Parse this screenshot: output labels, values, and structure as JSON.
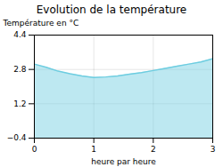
{
  "chart_data": {
    "type": "area",
    "title": "Evolution de la température",
    "xlabel": "heure par heure",
    "ylabel": "Température en °C",
    "x": [
      0,
      0.2,
      0.4,
      0.6,
      0.8,
      1.0,
      1.2,
      1.4,
      1.6,
      1.8,
      2.0,
      2.2,
      2.4,
      2.6,
      2.8,
      3.0
    ],
    "values": [
      3.05,
      2.9,
      2.72,
      2.6,
      2.5,
      2.42,
      2.45,
      2.5,
      2.58,
      2.65,
      2.75,
      2.85,
      2.95,
      3.05,
      3.15,
      3.3
    ],
    "color": "#6dcde0",
    "xlim": [
      0,
      3
    ],
    "xticks": [
      0,
      1,
      2,
      3
    ],
    "ylim": [
      -0.4,
      4.4
    ],
    "yticks": [
      -0.4,
      1.2,
      2.8,
      4.4
    ],
    "grid": true
  }
}
